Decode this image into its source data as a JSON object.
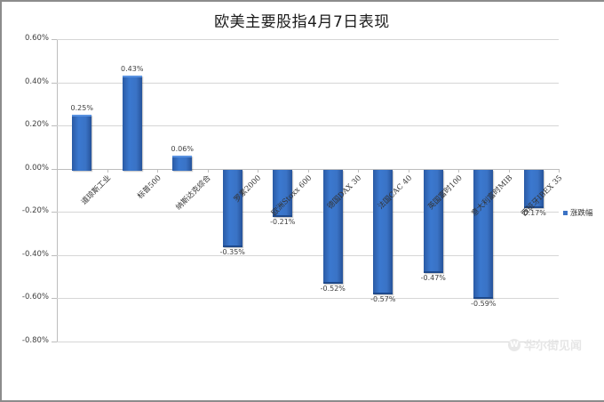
{
  "chart_data": {
    "type": "bar",
    "title": "欧美主要股指4月7日表现",
    "xlabel": "",
    "ylabel": "",
    "ylim": [
      -0.8,
      0.6
    ],
    "y_tick_step": 0.2,
    "y_ticks": [
      "0.60%",
      "0.40%",
      "0.20%",
      "0.00%",
      "-0.20%",
      "-0.40%",
      "-0.60%",
      "-0.80%"
    ],
    "grid": true,
    "legend_position": "right",
    "categories": [
      "道琼斯工业",
      "标普500",
      "纳斯达克综合",
      "罗素2000",
      "欧洲Stoxx 600",
      "德国DAX 30",
      "法国CAC 40",
      "英国富时100",
      "意大利富时MIB",
      "西班牙IBEX 35"
    ],
    "series": [
      {
        "name": "涨跌幅",
        "color": "#3b72c4",
        "values": [
          0.25,
          0.43,
          0.06,
          -0.35,
          -0.21,
          -0.52,
          -0.57,
          -0.47,
          -0.59,
          -0.17
        ],
        "labels": [
          "0.25%",
          "0.43%",
          "0.06%",
          "-0.35%",
          "-0.21%",
          "-0.52%",
          "-0.57%",
          "-0.47%",
          "-0.59%",
          "-0.17%"
        ]
      }
    ]
  },
  "legend": {
    "label": "涨跌幅"
  },
  "watermark": {
    "logo": "W",
    "text": "华尔街见闻"
  }
}
